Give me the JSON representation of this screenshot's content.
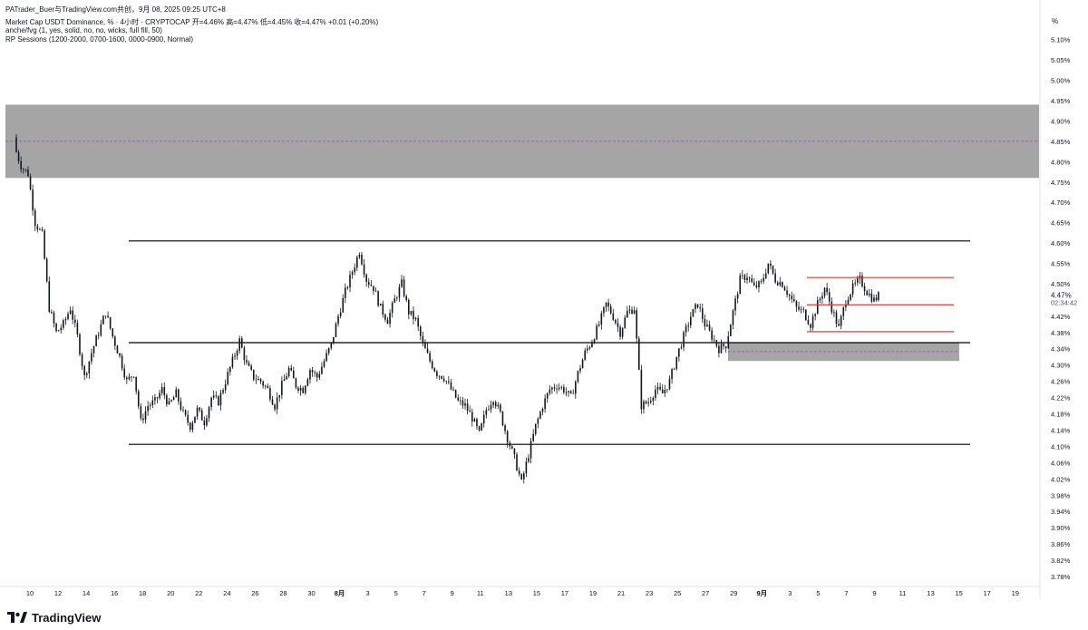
{
  "header": {
    "published_by": "PATrader_Buer与TradingView.com共创，9月 08, 2025 09:25 UTC+8",
    "symbol_line": "Market Cap USDT Dominance, % · 4小时 · CRYPTOCAP  开=4.46%  高=4.47%  低=4.45%  收=4.47%  +0.01 (+0.20%)",
    "indicator_1": "anche/fvg (1, yes, solid, no, no, wicks, full fill, 50)",
    "indicator_2": "RP Sessions (1200-2000, 0700-1600, 0000-0900, Normal)"
  },
  "price_axis": {
    "unit": "%",
    "ticks": [
      "5.10%",
      "5.05%",
      "5.00%",
      "4.95%",
      "4.90%",
      "4.85%",
      "4.80%",
      "4.75%",
      "4.70%",
      "4.65%",
      "4.60%",
      "4.55%",
      "4.50%",
      "4.42%",
      "4.38%",
      "4.34%",
      "4.30%",
      "4.26%",
      "4.22%",
      "4.18%",
      "4.14%",
      "4.10%",
      "4.06%",
      "4.02%",
      "3.98%",
      "3.94%",
      "3.90%",
      "3.86%",
      "3.82%",
      "3.78%"
    ],
    "current_price": "4.47%",
    "countdown": "02:34:42"
  },
  "time_axis": {
    "ticks": [
      "10",
      "12",
      "14",
      "16",
      "18",
      "20",
      "22",
      "24",
      "26",
      "28",
      "30",
      "8月",
      "3",
      "5",
      "7",
      "9",
      "11",
      "13",
      "15",
      "17",
      "19",
      "21",
      "23",
      "25",
      "27",
      "29",
      "9月",
      "3",
      "5",
      "7",
      "9",
      "11",
      "13",
      "15",
      "17",
      "19"
    ]
  },
  "brand": {
    "name": "TradingView"
  },
  "colors": {
    "candle": "#131722",
    "zone_fill": "#a5a5a5",
    "level_line": "#000000",
    "range_line": "#e53935",
    "midline": "#b34dd8"
  },
  "chart_data": {
    "type": "candlestick",
    "ylim": [
      3.76,
      5.135
    ],
    "price_labels_unit": "%",
    "horizontal_levels": [
      4.605,
      4.355,
      4.105
    ],
    "zones": [
      {
        "from": 4.76,
        "to": 4.94,
        "mid": 4.85
      },
      {
        "from": 4.31,
        "to": 4.355,
        "mid": 4.333
      }
    ],
    "red_range_levels": [
      4.515,
      4.448,
      4.382
    ],
    "last_close": 4.47,
    "series": [
      {
        "x": "Jul 9",
        "y": 4.84
      },
      {
        "x": "Jul 9.5",
        "y": 4.79
      },
      {
        "x": "Jul 10",
        "y": 4.77
      },
      {
        "x": "Jul 10.5",
        "y": 4.65
      },
      {
        "x": "Jul 11",
        "y": 4.62
      },
      {
        "x": "Jul 11.5",
        "y": 4.44
      },
      {
        "x": "Jul 12",
        "y": 4.38
      },
      {
        "x": "Jul 12.5",
        "y": 4.4
      },
      {
        "x": "Jul 13",
        "y": 4.44
      },
      {
        "x": "Jul 13.5",
        "y": 4.37
      },
      {
        "x": "Jul 14",
        "y": 4.27
      },
      {
        "x": "Jul 14.5",
        "y": 4.33
      },
      {
        "x": "Jul 15",
        "y": 4.38
      },
      {
        "x": "Jul 15.5",
        "y": 4.43
      },
      {
        "x": "Jul 16",
        "y": 4.37
      },
      {
        "x": "Jul 16.5",
        "y": 4.32
      },
      {
        "x": "Jul 17",
        "y": 4.26
      },
      {
        "x": "Jul 17.5",
        "y": 4.28
      },
      {
        "x": "Jul 18",
        "y": 4.16
      },
      {
        "x": "Jul 18.5",
        "y": 4.2
      },
      {
        "x": "Jul 19",
        "y": 4.21
      },
      {
        "x": "Jul 19.5",
        "y": 4.24
      },
      {
        "x": "Jul 20",
        "y": 4.2
      },
      {
        "x": "Jul 20.5",
        "y": 4.23
      },
      {
        "x": "Jul 21",
        "y": 4.18
      },
      {
        "x": "Jul 21.5",
        "y": 4.15
      },
      {
        "x": "Jul 22",
        "y": 4.19
      },
      {
        "x": "Jul 22.5",
        "y": 4.16
      },
      {
        "x": "Jul 23",
        "y": 4.22
      },
      {
        "x": "Jul 23.5",
        "y": 4.21
      },
      {
        "x": "Jul 24",
        "y": 4.26
      },
      {
        "x": "Jul 24.5",
        "y": 4.31
      },
      {
        "x": "Jul 25",
        "y": 4.36
      },
      {
        "x": "Jul 25.5",
        "y": 4.3
      },
      {
        "x": "Jul 26",
        "y": 4.27
      },
      {
        "x": "Jul 26.5",
        "y": 4.26
      },
      {
        "x": "Jul 27",
        "y": 4.24
      },
      {
        "x": "Jul 27.5",
        "y": 4.2
      },
      {
        "x": "Jul 28",
        "y": 4.25
      },
      {
        "x": "Jul 28.5",
        "y": 4.29
      },
      {
        "x": "Jul 29",
        "y": 4.25
      },
      {
        "x": "Jul 29.5",
        "y": 4.24
      },
      {
        "x": "Jul 30",
        "y": 4.29
      },
      {
        "x": "Jul 30.5",
        "y": 4.27
      },
      {
        "x": "Jul 31",
        "y": 4.31
      },
      {
        "x": "Jul 31.5",
        "y": 4.35
      },
      {
        "x": "Aug 1",
        "y": 4.42
      },
      {
        "x": "Aug 1.5",
        "y": 4.48
      },
      {
        "x": "Aug 2",
        "y": 4.53
      },
      {
        "x": "Aug 2.5",
        "y": 4.58
      },
      {
        "x": "Aug 3",
        "y": 4.51
      },
      {
        "x": "Aug 3.5",
        "y": 4.49
      },
      {
        "x": "Aug 4",
        "y": 4.44
      },
      {
        "x": "Aug 4.5",
        "y": 4.41
      },
      {
        "x": "Aug 5",
        "y": 4.46
      },
      {
        "x": "Aug 5.5",
        "y": 4.5
      },
      {
        "x": "Aug 6",
        "y": 4.43
      },
      {
        "x": "Aug 6.5",
        "y": 4.41
      },
      {
        "x": "Aug 7",
        "y": 4.35
      },
      {
        "x": "Aug 7.5",
        "y": 4.31
      },
      {
        "x": "Aug 8",
        "y": 4.28
      },
      {
        "x": "Aug 8.5",
        "y": 4.27
      },
      {
        "x": "Aug 9",
        "y": 4.24
      },
      {
        "x": "Aug 9.5",
        "y": 4.21
      },
      {
        "x": "Aug 10",
        "y": 4.2
      },
      {
        "x": "Aug 10.5",
        "y": 4.17
      },
      {
        "x": "Aug 11",
        "y": 4.13
      },
      {
        "x": "Aug 11.5",
        "y": 4.19
      },
      {
        "x": "Aug 12",
        "y": 4.22
      },
      {
        "x": "Aug 12.5",
        "y": 4.18
      },
      {
        "x": "Aug 13",
        "y": 4.12
      },
      {
        "x": "Aug 13.5",
        "y": 4.07
      },
      {
        "x": "Aug 14",
        "y": 4.01
      },
      {
        "x": "Aug 14.5",
        "y": 4.08
      },
      {
        "x": "Aug 15",
        "y": 4.15
      },
      {
        "x": "Aug 15.5",
        "y": 4.2
      },
      {
        "x": "Aug 16",
        "y": 4.24
      },
      {
        "x": "Aug 16.5",
        "y": 4.25
      },
      {
        "x": "Aug 17",
        "y": 4.24
      },
      {
        "x": "Aug 17.5",
        "y": 4.22
      },
      {
        "x": "Aug 18",
        "y": 4.28
      },
      {
        "x": "Aug 18.5",
        "y": 4.33
      },
      {
        "x": "Aug 19",
        "y": 4.36
      },
      {
        "x": "Aug 19.5",
        "y": 4.4
      },
      {
        "x": "Aug 20",
        "y": 4.45
      },
      {
        "x": "Aug 20.5",
        "y": 4.42
      },
      {
        "x": "Aug 21",
        "y": 4.38
      },
      {
        "x": "Aug 21.5",
        "y": 4.43
      },
      {
        "x": "Aug 22",
        "y": 4.44
      },
      {
        "x": "Aug 22.5",
        "y": 4.2
      },
      {
        "x": "Aug 23",
        "y": 4.21
      },
      {
        "x": "Aug 23.5",
        "y": 4.24
      },
      {
        "x": "Aug 24",
        "y": 4.23
      },
      {
        "x": "Aug 24.5",
        "y": 4.26
      },
      {
        "x": "Aug 25",
        "y": 4.32
      },
      {
        "x": "Aug 25.5",
        "y": 4.37
      },
      {
        "x": "Aug 26",
        "y": 4.42
      },
      {
        "x": "Aug 26.5",
        "y": 4.45
      },
      {
        "x": "Aug 27",
        "y": 4.4
      },
      {
        "x": "Aug 27.5",
        "y": 4.37
      },
      {
        "x": "Aug 28",
        "y": 4.34
      },
      {
        "x": "Aug 28.5",
        "y": 4.35
      },
      {
        "x": "Aug 29",
        "y": 4.43
      },
      {
        "x": "Aug 29.5",
        "y": 4.51
      },
      {
        "x": "Aug 30",
        "y": 4.52
      },
      {
        "x": "Aug 30.5",
        "y": 4.49
      },
      {
        "x": "Aug 31",
        "y": 4.5
      },
      {
        "x": "Aug 31.5",
        "y": 4.55
      },
      {
        "x": "Sep 1",
        "y": 4.51
      },
      {
        "x": "Sep 1.5",
        "y": 4.5
      },
      {
        "x": "Sep 2",
        "y": 4.47
      },
      {
        "x": "Sep 2.5",
        "y": 4.44
      },
      {
        "x": "Sep 3",
        "y": 4.43
      },
      {
        "x": "Sep 3.5",
        "y": 4.4
      },
      {
        "x": "Sep 4",
        "y": 4.45
      },
      {
        "x": "Sep 4.5",
        "y": 4.49
      },
      {
        "x": "Sep 5",
        "y": 4.44
      },
      {
        "x": "Sep 5.5",
        "y": 4.39
      },
      {
        "x": "Sep 6",
        "y": 4.46
      },
      {
        "x": "Sep 6.5",
        "y": 4.49
      },
      {
        "x": "Sep 7",
        "y": 4.51
      },
      {
        "x": "Sep 7.5",
        "y": 4.48
      },
      {
        "x": "Sep 8",
        "y": 4.46
      },
      {
        "x": "Sep 8.3",
        "y": 4.47
      }
    ]
  }
}
